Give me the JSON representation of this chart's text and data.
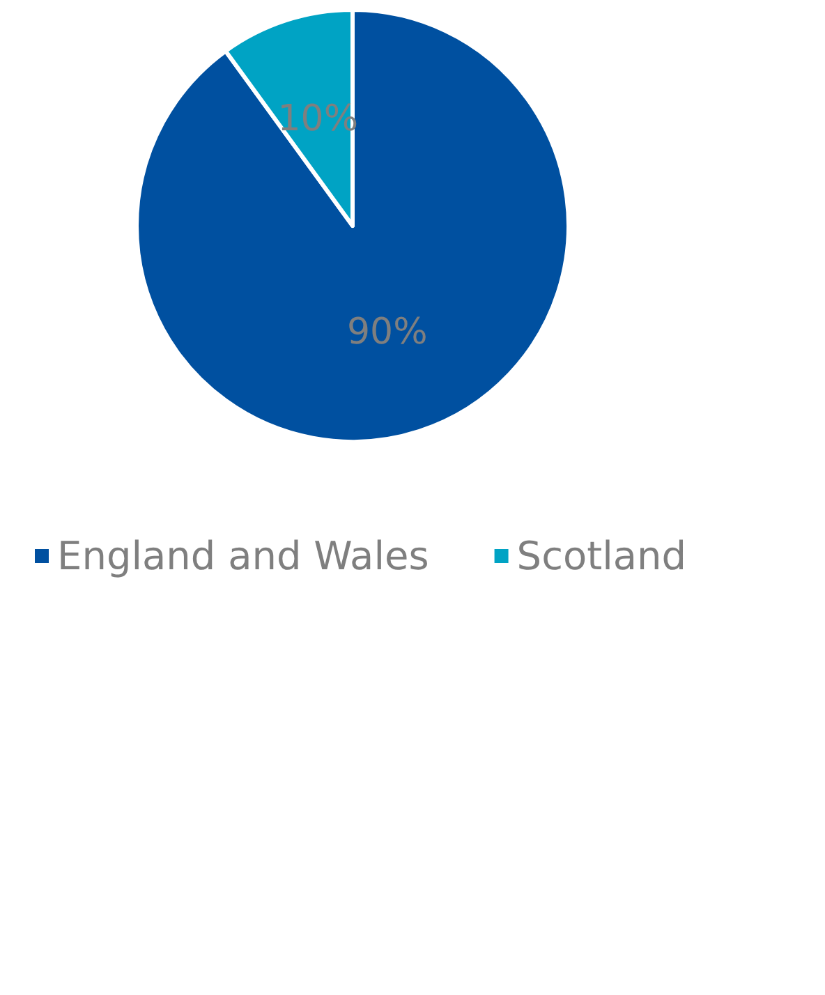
{
  "chart_data": {
    "type": "pie",
    "categories": [
      "England and Wales",
      "Scotland"
    ],
    "values": [
      90,
      10
    ],
    "colors": [
      "#0050a0",
      "#00a3c4"
    ],
    "value_labels": [
      "90%",
      "10%"
    ],
    "legend": "bottom"
  }
}
